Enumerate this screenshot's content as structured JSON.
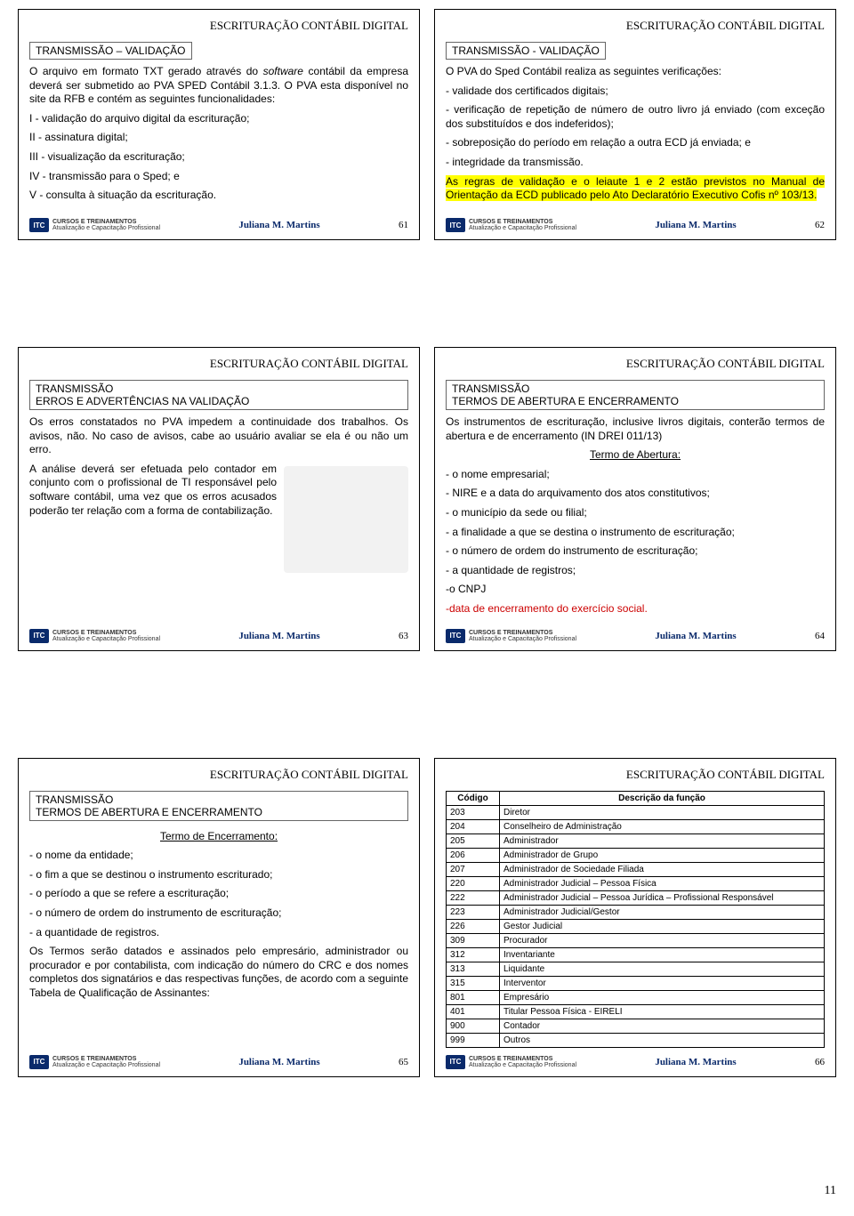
{
  "common": {
    "header": "ESCRITURAÇÃO CONTÁBIL DIGITAL",
    "author": "Juliana M. Martins",
    "logo_abbr": "ITC",
    "logo_line1": "CURSOS E TREINAMENTOS",
    "logo_line2": "Atualização e Capacitação Profissional"
  },
  "slides": {
    "s61": {
      "subtitle": "TRANSMISSÃO – VALIDAÇÃO",
      "p1a": "O arquivo em formato TXT gerado através do ",
      "p1b": "software",
      "p1c": " contábil da empresa deverá ser submetido ao PVA SPED Contábil 3.1.3. O PVA esta disponível no site da RFB e contém as seguintes funcionalidades:",
      "l1": "I - validação do arquivo digital da escrituração;",
      "l2": "II - assinatura digital;",
      "l3": "III - visualização da escrituração;",
      "l4": "IV - transmissão para o Sped; e",
      "l5": "V - consulta à situação da escrituração.",
      "num": "61"
    },
    "s62": {
      "subtitle": "TRANSMISSÃO - VALIDAÇÃO",
      "p1": "O PVA do Sped Contábil realiza as seguintes verificações:",
      "b1": "- validade dos certificados digitais;",
      "b2": "- verificação de repetição de número de outro livro já enviado (com exceção dos substituídos e dos indeferidos);",
      "b3": "- sobreposição do período em relação a outra ECD já enviada; e",
      "b4": "- integridade da transmissão.",
      "p2": "As regras de validação e o leiaute 1 e 2 estão previstos no Manual de Orientação da ECD publicado pelo Ato Declaratório Executivo Cofis nº 103/13.",
      "num": "62"
    },
    "s63": {
      "sub1": "TRANSMISSÃO",
      "sub2": "ERROS E ADVERTÊNCIAS NA VALIDAÇÃO",
      "p1": "Os erros constatados no PVA impedem a continuidade dos trabalhos. Os avisos, não. No caso de avisos, cabe ao usuário avaliar se ela é ou não um erro.",
      "p2": "A análise deverá ser efetuada pelo contador em conjunto com o profissional de TI responsável pelo software contábil, uma vez que os erros acusados poderão ter relação com a forma de contabilização.",
      "num": "63"
    },
    "s64": {
      "sub1": "TRANSMISSÃO",
      "sub2": "TERMOS DE ABERTURA E ENCERRAMENTO",
      "p1": "Os instrumentos de escrituração, inclusive livros digitais, conterão termos de abertura e de encerramento (IN DREI 011/13)",
      "heading": "Termo de Abertura:",
      "b1": "- o nome empresarial;",
      "b2": "- NIRE e a data do arquivamento dos atos constitutivos;",
      "b3": "- o município da sede ou filial;",
      "b4": "- a finalidade a que se destina o instrumento de escrituração;",
      "b5": "- o número de ordem do instrumento de escrituração;",
      "b6": "- a quantidade de registros;",
      "b7": "-o CNPJ",
      "b8": "-data de encerramento do exercício social.",
      "num": "64"
    },
    "s65": {
      "sub1": "TRANSMISSÃO",
      "sub2": "TERMOS DE ABERTURA E ENCERRAMENTO",
      "heading": "Termo de Encerramento:",
      "b1": "- o nome da entidade;",
      "b2": "- o fim a que se destinou o instrumento escriturado;",
      "b3": "- o período a que se refere a escrituração;",
      "b4": "- o número de ordem do instrumento de escrituração;",
      "b5": "- a quantidade de registros.",
      "p1": "Os Termos serão datados e assinados pelo empresário, administrador ou procurador e por contabilista, com indicação do número do CRC e dos nomes completos dos signatários e das respectivas funções, de acordo com a seguinte Tabela de Qualificação de Assinantes:",
      "num": "65"
    },
    "s66": {
      "table": {
        "h1": "Código",
        "h2": "Descrição da função",
        "rows": [
          [
            "203",
            "Diretor"
          ],
          [
            "204",
            "Conselheiro de Administração"
          ],
          [
            "205",
            "Administrador"
          ],
          [
            "206",
            "Administrador de Grupo"
          ],
          [
            "207",
            "Administrador de Sociedade Filiada"
          ],
          [
            "220",
            "Administrador Judicial – Pessoa Física"
          ],
          [
            "222",
            "Administrador Judicial – Pessoa Jurídica – Profissional Responsável"
          ],
          [
            "223",
            "Administrador Judicial/Gestor"
          ],
          [
            "226",
            "Gestor Judicial"
          ],
          [
            "309",
            "Procurador"
          ],
          [
            "312",
            "Inventariante"
          ],
          [
            "313",
            "Liquidante"
          ],
          [
            "315",
            "Interventor"
          ],
          [
            "801",
            "Empresário"
          ],
          [
            "401",
            "Titular Pessoa Física - EIRELI"
          ],
          [
            "900",
            "Contador"
          ],
          [
            "999",
            "Outros"
          ]
        ]
      },
      "num": "66"
    }
  },
  "page_number": "11"
}
